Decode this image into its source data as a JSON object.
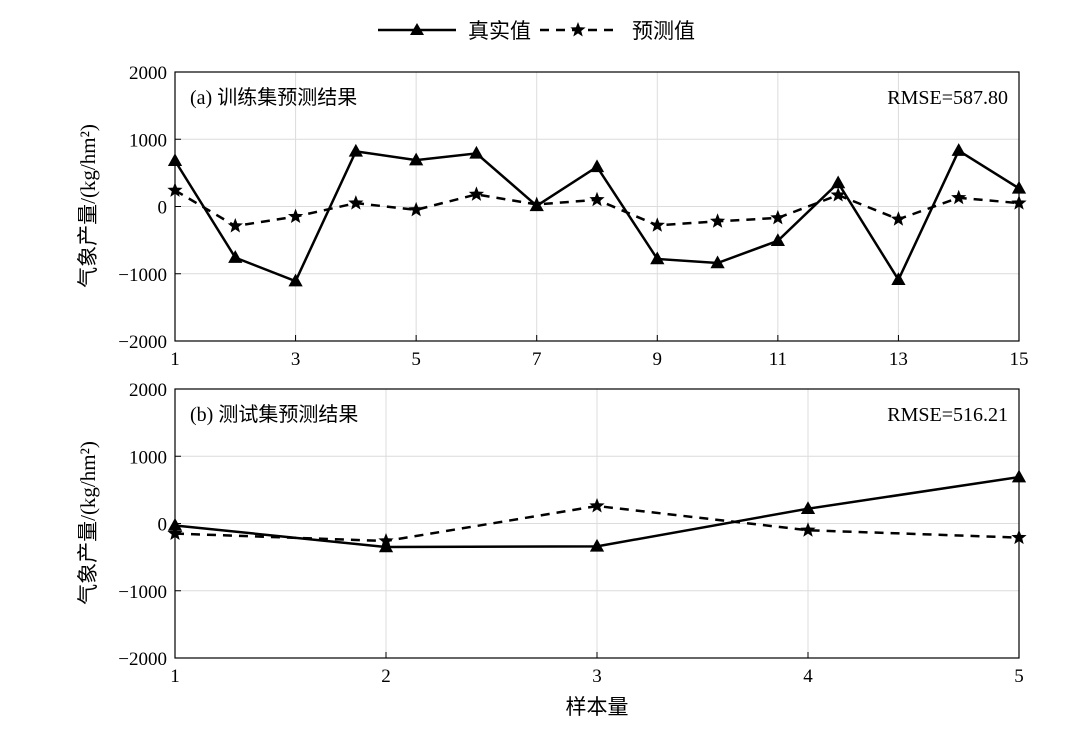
{
  "legend": {
    "actual_label": "真实值",
    "predicted_label": "预测值"
  },
  "colors": {
    "line": "#000000",
    "grid": "#dcdcdc",
    "background": "#ffffff"
  },
  "chart_data": [
    {
      "type": "line",
      "panel_label": "(a) 训练集预测结果",
      "annotation": "RMSE=587.80",
      "xlabel": "",
      "ylabel": "气象产量/(kg/hm²)",
      "xlim": [
        1,
        15
      ],
      "ylim": [
        -2000,
        2000
      ],
      "xticks": [
        1,
        3,
        5,
        7,
        9,
        11,
        13,
        15
      ],
      "yticks": [
        -2000,
        -1000,
        0,
        1000,
        2000
      ],
      "ytick_labels": [
        "−2000",
        "−1000",
        "0",
        "1000",
        "2000"
      ],
      "grid": true,
      "x": [
        1,
        2,
        3,
        4,
        5,
        6,
        7,
        8,
        9,
        10,
        11,
        12,
        13,
        14,
        15
      ],
      "series": [
        {
          "name": "真实值",
          "style": "solid",
          "marker": "triangle",
          "values": [
            680,
            -760,
            -1110,
            820,
            690,
            790,
            10,
            590,
            -780,
            -840,
            -510,
            350,
            -1090,
            830,
            270
          ]
        },
        {
          "name": "预测值",
          "style": "dashed",
          "marker": "star",
          "values": [
            240,
            -290,
            -150,
            50,
            -50,
            180,
            30,
            100,
            -280,
            -220,
            -170,
            170,
            -190,
            130,
            50
          ]
        }
      ]
    },
    {
      "type": "line",
      "panel_label": "(b) 测试集预测结果",
      "annotation": "RMSE=516.21",
      "xlabel": "样本量",
      "ylabel": "气象产量/(kg/hm²)",
      "xlim": [
        1,
        5
      ],
      "ylim": [
        -2000,
        2000
      ],
      "xticks": [
        1,
        2,
        3,
        4,
        5
      ],
      "yticks": [
        -2000,
        -1000,
        0,
        1000,
        2000
      ],
      "ytick_labels": [
        "−2000",
        "−1000",
        "0",
        "1000",
        "2000"
      ],
      "grid": true,
      "x": [
        1,
        2,
        3,
        4,
        5
      ],
      "series": [
        {
          "name": "真实值",
          "style": "solid",
          "marker": "triangle",
          "values": [
            -30,
            -350,
            -340,
            220,
            690
          ]
        },
        {
          "name": "预测值",
          "style": "dashed",
          "marker": "star",
          "values": [
            -150,
            -260,
            260,
            -100,
            -210
          ]
        }
      ]
    }
  ]
}
